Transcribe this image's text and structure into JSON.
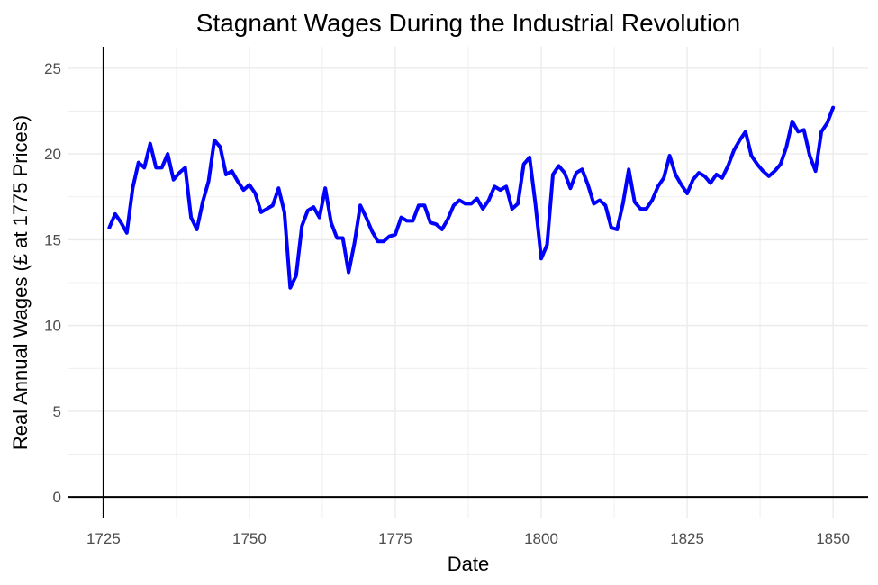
{
  "chart_data": {
    "type": "line",
    "title": "Stagnant Wages During the Industrial Revolution",
    "xlabel": "Date",
    "ylabel": "Real Annual Wages (£ at 1775 Prices)",
    "xlim": [
      1719,
      1856
    ],
    "ylim": [
      -1.25,
      26.25
    ],
    "x_ticks": [
      1725,
      1750,
      1775,
      1800,
      1825,
      1850
    ],
    "y_ticks": [
      0,
      5,
      10,
      15,
      20,
      25
    ],
    "x_minor_ticks": [
      1737.5,
      1762.5,
      1787.5,
      1812.5,
      1837.5
    ],
    "y_minor_ticks": [
      2.5,
      7.5,
      12.5,
      17.5,
      22.5
    ],
    "grid": true,
    "colors": {
      "line": "#0000ff",
      "grid": "#ebebeb",
      "axis": "#000000"
    },
    "series": [
      {
        "x": [
          1726,
          1727,
          1728,
          1729,
          1730,
          1731,
          1732,
          1733,
          1734,
          1735,
          1736,
          1737,
          1738,
          1739,
          1740,
          1741,
          1742,
          1743,
          1744,
          1745,
          1746,
          1747,
          1748,
          1749,
          1750,
          1751,
          1752,
          1753,
          1754,
          1755,
          1756,
          1757,
          1758,
          1759,
          1760,
          1761,
          1762,
          1763,
          1764,
          1765,
          1766,
          1767,
          1768,
          1769,
          1770,
          1771,
          1772,
          1773,
          1774,
          1775,
          1776,
          1777,
          1778,
          1779,
          1780,
          1781,
          1782,
          1783,
          1784,
          1785,
          1786,
          1787,
          1788,
          1789,
          1790,
          1791,
          1792,
          1793,
          1794,
          1795,
          1796,
          1797,
          1798,
          1799,
          1800,
          1801,
          1802,
          1803,
          1804,
          1805,
          1806,
          1807,
          1808,
          1809,
          1810,
          1811,
          1812,
          1813,
          1814,
          1815,
          1816,
          1817,
          1818,
          1819,
          1820,
          1821,
          1822,
          1823,
          1824,
          1825,
          1826,
          1827,
          1828,
          1829,
          1830,
          1831,
          1832,
          1833,
          1834,
          1835,
          1836,
          1837,
          1838,
          1839,
          1840,
          1841,
          1842,
          1843,
          1844,
          1845,
          1846,
          1847,
          1848,
          1849,
          1850
        ],
        "values": [
          15.7,
          16.5,
          16.0,
          15.4,
          18.0,
          19.5,
          19.2,
          20.6,
          19.2,
          19.2,
          20.0,
          18.5,
          18.9,
          19.2,
          16.3,
          15.6,
          17.2,
          18.4,
          20.8,
          20.4,
          18.8,
          19.0,
          18.4,
          17.9,
          18.2,
          17.7,
          16.6,
          16.8,
          17.0,
          18.0,
          16.6,
          12.2,
          12.9,
          15.8,
          16.7,
          16.9,
          16.3,
          18.0,
          16.0,
          15.1,
          15.1,
          13.1,
          14.8,
          17.0,
          16.3,
          15.5,
          14.9,
          14.9,
          15.2,
          15.3,
          16.3,
          16.1,
          16.1,
          17.0,
          17.0,
          16.0,
          15.9,
          15.6,
          16.2,
          17.0,
          17.3,
          17.1,
          17.1,
          17.4,
          16.8,
          17.3,
          18.1,
          17.9,
          18.1,
          16.8,
          17.1,
          19.4,
          19.8,
          17.1,
          13.9,
          14.7,
          18.8,
          19.3,
          18.9,
          18.0,
          18.9,
          19.1,
          18.2,
          17.1,
          17.3,
          17.0,
          15.7,
          15.6,
          17.1,
          19.1,
          17.2,
          16.8,
          16.8,
          17.3,
          18.1,
          18.6,
          19.9,
          18.8,
          18.2,
          17.7,
          18.5,
          18.9,
          18.7,
          18.3,
          18.8,
          18.6,
          19.3,
          20.2,
          20.8,
          21.3,
          19.9,
          19.4,
          19.0,
          18.7,
          19.0,
          19.4,
          20.4,
          21.9,
          21.3,
          21.4,
          19.9,
          19.0,
          21.3,
          21.8,
          22.7
        ]
      }
    ]
  }
}
